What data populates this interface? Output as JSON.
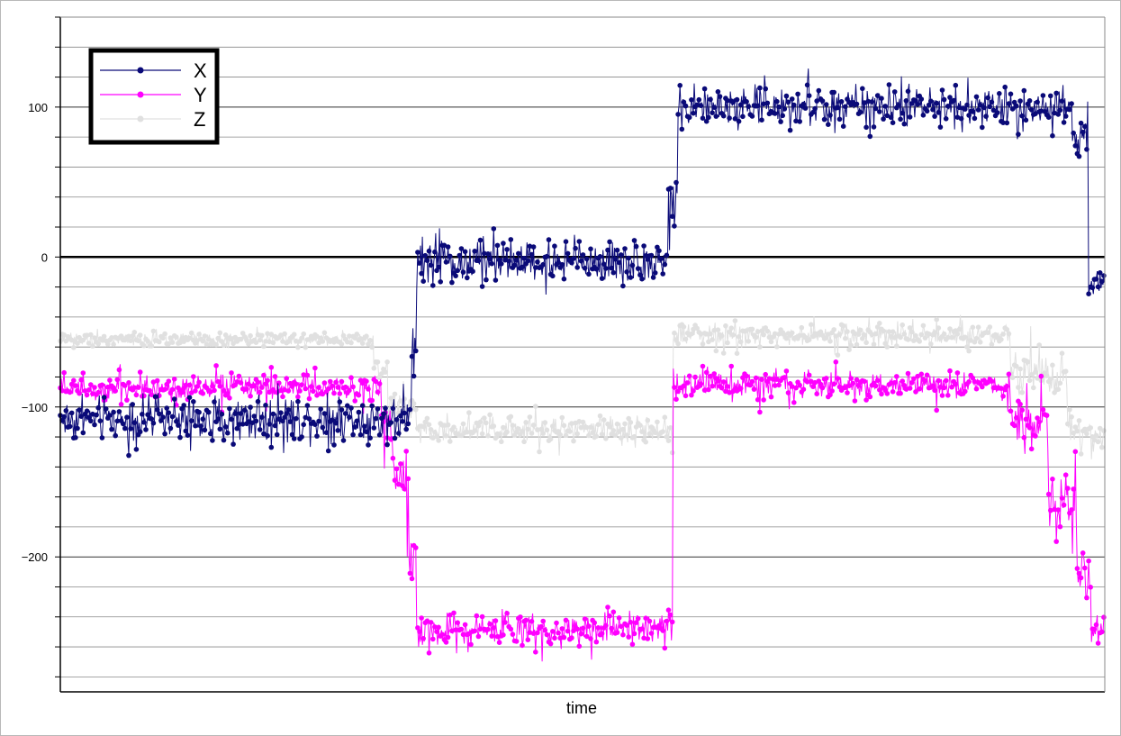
{
  "chart_data": {
    "type": "line",
    "title": "",
    "xlabel": "time",
    "ylabel": "",
    "ylim": [
      -290,
      160
    ],
    "yticks": [
      100,
      0,
      -100,
      -200
    ],
    "ytick_labels": [
      "100",
      "0",
      "−100",
      "−200"
    ],
    "minor_grid_step": 20,
    "grid": true,
    "legend": "top-left",
    "series": [
      {
        "name": "X",
        "color": "#0a0a78",
        "segments": [
          {
            "from": 0,
            "to": 370,
            "level": -108,
            "noise": 10
          },
          {
            "from": 370,
            "to": 375,
            "level": -55,
            "noise": 20
          },
          {
            "from": 375,
            "to": 640,
            "level": -3,
            "noise": 10
          },
          {
            "from": 640,
            "to": 650,
            "level": 35,
            "noise": 12
          },
          {
            "from": 650,
            "to": 1065,
            "level": 100,
            "noise": 9
          },
          {
            "from": 1065,
            "to": 1082,
            "level": 80,
            "noise": 10
          },
          {
            "from": 1082,
            "to": 1100,
            "level": -18,
            "noise": 9
          }
        ]
      },
      {
        "name": "Y",
        "color": "#ff00ff",
        "segments": [
          {
            "from": 0,
            "to": 338,
            "level": -87,
            "noise": 6
          },
          {
            "from": 338,
            "to": 350,
            "level": -112,
            "noise": 10
          },
          {
            "from": 350,
            "to": 365,
            "level": -145,
            "noise": 12
          },
          {
            "from": 365,
            "to": 375,
            "level": -190,
            "noise": 15
          },
          {
            "from": 375,
            "to": 645,
            "level": -248,
            "noise": 8
          },
          {
            "from": 645,
            "to": 1000,
            "level": -85,
            "noise": 6
          },
          {
            "from": 1000,
            "to": 1040,
            "level": -115,
            "noise": 12
          },
          {
            "from": 1040,
            "to": 1070,
            "level": -160,
            "noise": 15
          },
          {
            "from": 1070,
            "to": 1085,
            "level": -215,
            "noise": 15
          },
          {
            "from": 1085,
            "to": 1100,
            "level": -250,
            "noise": 8
          }
        ]
      },
      {
        "name": "Z",
        "color": "#e0e0e0",
        "segments": [
          {
            "from": 0,
            "to": 330,
            "level": -55,
            "noise": 3
          },
          {
            "from": 330,
            "to": 345,
            "level": -73,
            "noise": 5
          },
          {
            "from": 345,
            "to": 375,
            "level": -100,
            "noise": 10
          },
          {
            "from": 375,
            "to": 645,
            "level": -115,
            "noise": 6
          },
          {
            "from": 645,
            "to": 1000,
            "level": -52,
            "noise": 5
          },
          {
            "from": 1000,
            "to": 1060,
            "level": -80,
            "noise": 10
          },
          {
            "from": 1060,
            "to": 1100,
            "level": -118,
            "noise": 7
          }
        ]
      }
    ]
  }
}
